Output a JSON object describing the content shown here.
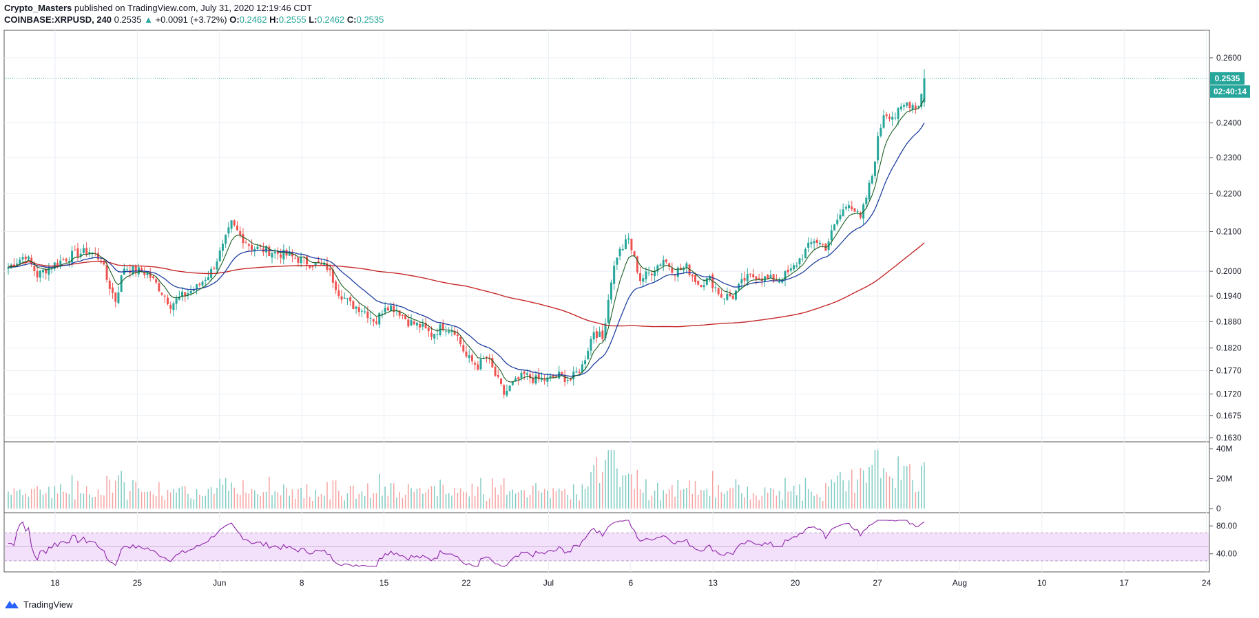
{
  "header": {
    "author": "Crypto_Masters",
    "published_text": "published on TradingView.com, July 31, 2020 12:19:46 CDT",
    "symbol": "COINBASE:XRPUSD, 240",
    "last": "0.2535",
    "change": "+0.0091 (+3.72%)",
    "o_label": "O:",
    "o_value": "0.2462",
    "h_label": "H:",
    "h_value": "0.2555",
    "l_label": "L:",
    "l_value": "0.2462",
    "c_label": "C:",
    "c_value": "0.2535"
  },
  "footer": {
    "brand": "TradingView"
  },
  "colors": {
    "up": "#26a69a",
    "down": "#ef5350",
    "ma_short": "#1b5e20",
    "ma_mid": "#1e3fa0",
    "ma_long": "#c62828",
    "rsi": "#8e24aa",
    "rsi_band": "#f3e0fb",
    "grid": "#e8eef4",
    "price_tag": "#26a69a"
  },
  "chart_data": {
    "type": "candlestick",
    "symbol": "COINBASE:XRPUSD",
    "interval": "240",
    "price_axis": {
      "ticks": [
        "0.2600",
        "0.2400",
        "0.2300",
        "0.2200",
        "0.2100",
        "0.2000",
        "0.1940",
        "0.1880",
        "0.1820",
        "0.1770",
        "0.1720",
        "0.1675",
        "0.1630"
      ],
      "scale": "log",
      "range": [
        0.163,
        0.26
      ]
    },
    "last_price_label": "0.2535",
    "countdown_label": "02:40:14",
    "x_axis": {
      "ticks": [
        "18",
        "25",
        "Jun",
        "8",
        "15",
        "22",
        "Jul",
        "6",
        "13",
        "20",
        "27",
        "Aug",
        "10",
        "17",
        "24"
      ]
    },
    "close_path": [
      [
        0,
        0.201
      ],
      [
        6,
        0.204
      ],
      [
        10,
        0.199
      ],
      [
        14,
        0.201
      ],
      [
        22,
        0.204
      ],
      [
        28,
        0.205
      ],
      [
        32,
        0.203
      ],
      [
        34,
        0.198
      ],
      [
        37,
        0.193
      ],
      [
        40,
        0.201
      ],
      [
        48,
        0.1995
      ],
      [
        52,
        0.196
      ],
      [
        56,
        0.192
      ],
      [
        60,
        0.194
      ],
      [
        65,
        0.196
      ],
      [
        70,
        0.2
      ],
      [
        74,
        0.206
      ],
      [
        77,
        0.212
      ],
      [
        80,
        0.209
      ],
      [
        84,
        0.206
      ],
      [
        90,
        0.205
      ],
      [
        96,
        0.204
      ],
      [
        104,
        0.202
      ],
      [
        110,
        0.201
      ],
      [
        114,
        0.195
      ],
      [
        118,
        0.192
      ],
      [
        122,
        0.191
      ],
      [
        127,
        0.188
      ],
      [
        130,
        0.192
      ],
      [
        134,
        0.191
      ],
      [
        138,
        0.188
      ],
      [
        142,
        0.187
      ],
      [
        146,
        0.185
      ],
      [
        150,
        0.187
      ],
      [
        154,
        0.186
      ],
      [
        158,
        0.18
      ],
      [
        162,
        0.178
      ],
      [
        165,
        0.18
      ],
      [
        168,
        0.176
      ],
      [
        171,
        0.172
      ],
      [
        174,
        0.174
      ],
      [
        178,
        0.176
      ],
      [
        182,
        0.175
      ],
      [
        186,
        0.175
      ],
      [
        190,
        0.176
      ],
      [
        194,
        0.175
      ],
      [
        198,
        0.178
      ],
      [
        202,
        0.186
      ],
      [
        205,
        0.184
      ],
      [
        208,
        0.198
      ],
      [
        210,
        0.204
      ],
      [
        214,
        0.208
      ],
      [
        218,
        0.198
      ],
      [
        222,
        0.2
      ],
      [
        226,
        0.203
      ],
      [
        230,
        0.2
      ],
      [
        234,
        0.201
      ],
      [
        238,
        0.197
      ],
      [
        242,
        0.198
      ],
      [
        246,
        0.194
      ],
      [
        250,
        0.194
      ],
      [
        254,
        0.198
      ],
      [
        258,
        0.199
      ],
      [
        262,
        0.198
      ],
      [
        266,
        0.198
      ],
      [
        270,
        0.2
      ],
      [
        274,
        0.204
      ],
      [
        278,
        0.208
      ],
      [
        282,
        0.206
      ],
      [
        286,
        0.213
      ],
      [
        290,
        0.218
      ],
      [
        294,
        0.213
      ],
      [
        298,
        0.225
      ],
      [
        300,
        0.235
      ],
      [
        302,
        0.243
      ],
      [
        306,
        0.242
      ],
      [
        310,
        0.246
      ],
      [
        314,
        0.245
      ],
      [
        316,
        0.2535
      ]
    ],
    "series": [
      {
        "name": "",
        "kind": "ma_short"
      },
      {
        "name": "",
        "kind": "ma_mid"
      },
      {
        "name": "",
        "kind": "ma_long"
      }
    ],
    "volume_axis": {
      "ticks": [
        "40M",
        "20M",
        "0"
      ]
    },
    "rsi_axis": {
      "ticks": [
        "80.00",
        "40.00"
      ],
      "band": [
        30,
        70
      ]
    }
  }
}
